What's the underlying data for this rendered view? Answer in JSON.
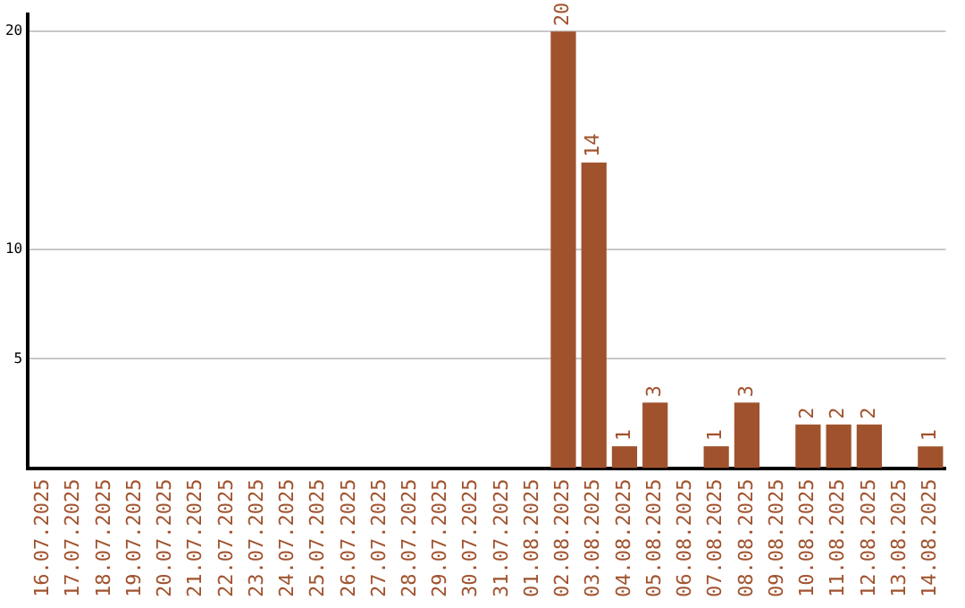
{
  "chart_data": {
    "type": "bar",
    "categories": [
      "16.07.2025",
      "17.07.2025",
      "18.07.2025",
      "19.07.2025",
      "20.07.2025",
      "21.07.2025",
      "22.07.2025",
      "23.07.2025",
      "24.07.2025",
      "25.07.2025",
      "26.07.2025",
      "27.07.2025",
      "28.07.2025",
      "29.07.2025",
      "30.07.2025",
      "31.07.2025",
      "01.08.2025",
      "02.08.2025",
      "03.08.2025",
      "04.08.2025",
      "05.08.2025",
      "06.08.2025",
      "07.08.2025",
      "08.08.2025",
      "09.08.2025",
      "10.08.2025",
      "11.08.2025",
      "12.08.2025",
      "13.08.2025",
      "14.08.2025"
    ],
    "values": [
      null,
      null,
      null,
      null,
      null,
      null,
      null,
      null,
      null,
      null,
      null,
      null,
      null,
      null,
      null,
      null,
      null,
      20,
      14,
      1,
      3,
      null,
      1,
      3,
      null,
      2,
      2,
      2,
      null,
      1
    ],
    "color": "#a0522d",
    "ylim": [
      0,
      20.8
    ],
    "yticks": [
      5,
      10,
      20
    ],
    "grid": "y",
    "legend": false,
    "data_labels": true
  }
}
